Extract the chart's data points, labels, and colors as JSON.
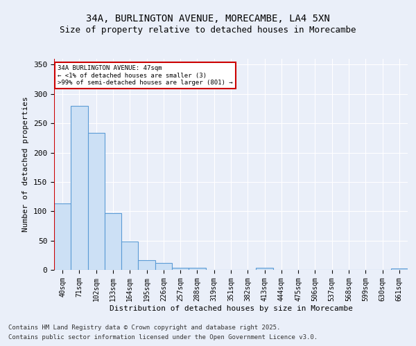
{
  "title_line1": "34A, BURLINGTON AVENUE, MORECAMBE, LA4 5XN",
  "title_line2": "Size of property relative to detached houses in Morecambe",
  "xlabel": "Distribution of detached houses by size in Morecambe",
  "ylabel": "Number of detached properties",
  "categories": [
    "40sqm",
    "71sqm",
    "102sqm",
    "133sqm",
    "164sqm",
    "195sqm",
    "226sqm",
    "257sqm",
    "288sqm",
    "319sqm",
    "351sqm",
    "382sqm",
    "413sqm",
    "444sqm",
    "475sqm",
    "506sqm",
    "537sqm",
    "568sqm",
    "599sqm",
    "630sqm",
    "661sqm"
  ],
  "values": [
    113,
    280,
    234,
    97,
    48,
    16,
    12,
    4,
    4,
    0,
    0,
    0,
    3,
    0,
    0,
    0,
    0,
    0,
    0,
    0,
    2
  ],
  "bar_color": "#cce0f5",
  "bar_edge_color": "#5b9bd5",
  "annotation_text": "34A BURLINGTON AVENUE: 47sqm\n← <1% of detached houses are smaller (3)\n>99% of semi-detached houses are larger (801) →",
  "annotation_box_color": "#ffffff",
  "annotation_box_edge": "#cc0000",
  "ylim": [
    0,
    360
  ],
  "yticks": [
    0,
    50,
    100,
    150,
    200,
    250,
    300,
    350
  ],
  "background_color": "#eaeff9",
  "grid_color": "#ffffff",
  "footer_line1": "Contains HM Land Registry data © Crown copyright and database right 2025.",
  "footer_line2": "Contains public sector information licensed under the Open Government Licence v3.0.",
  "red_line_color": "#cc0000",
  "title_fontsize": 10,
  "subtitle_fontsize": 9
}
